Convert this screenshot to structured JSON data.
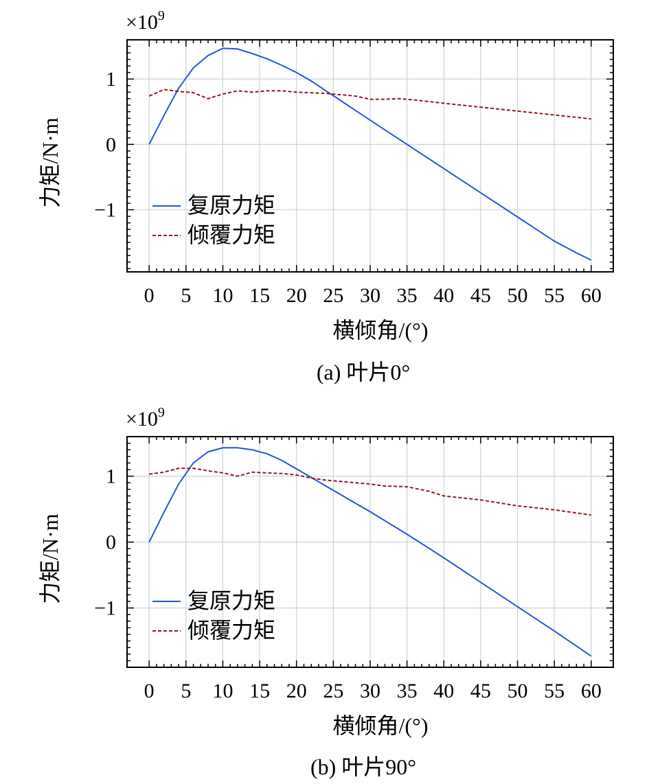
{
  "chart_data": [
    {
      "type": "line",
      "caption": "(a) 叶片0°",
      "xlabel": "横倾角/(°)",
      "ylabel": "力矩/N·m",
      "y_multiplier": "×10",
      "y_multiplier_exp": "9",
      "xlim": [
        -3,
        63
      ],
      "ylim": [
        -1.95,
        1.6
      ],
      "xticks": [
        0,
        5,
        10,
        15,
        20,
        25,
        30,
        35,
        40,
        45,
        50,
        55,
        60
      ],
      "xtick_labels": [
        "0",
        "5",
        "10",
        "15",
        "20",
        "25",
        "30",
        "35",
        "40",
        "45",
        "50",
        "55",
        "60"
      ],
      "yticks": [
        -1,
        0,
        1
      ],
      "ytick_labels": [
        "−1",
        "0",
        "1"
      ],
      "grid": true,
      "legend_position": "lower-left",
      "series": [
        {
          "name": "复原力矩",
          "color": "#2255dd",
          "dash": "solid",
          "x": [
            0,
            2,
            4,
            6,
            8,
            10,
            12,
            14,
            16,
            18,
            20,
            22,
            24,
            26,
            28,
            30,
            35,
            40,
            45,
            50,
            55,
            58,
            60
          ],
          "y": [
            0,
            0.44,
            0.86,
            1.17,
            1.36,
            1.47,
            1.46,
            1.39,
            1.31,
            1.21,
            1.1,
            0.97,
            0.82,
            0.67,
            0.52,
            0.37,
            0.0,
            -0.37,
            -0.74,
            -1.11,
            -1.48,
            -1.66,
            -1.77
          ]
        },
        {
          "name": "倾覆力矩",
          "color": "#8b1a1a",
          "dash": "dashed",
          "x": [
            0,
            2,
            4,
            6,
            8,
            10,
            12,
            14,
            16,
            18,
            20,
            22,
            24,
            26,
            28,
            30,
            32,
            34,
            36,
            40,
            45,
            50,
            55,
            60
          ],
          "y": [
            0.74,
            0.84,
            0.81,
            0.79,
            0.7,
            0.77,
            0.82,
            0.8,
            0.82,
            0.82,
            0.8,
            0.79,
            0.78,
            0.76,
            0.74,
            0.69,
            0.69,
            0.7,
            0.68,
            0.63,
            0.57,
            0.51,
            0.45,
            0.39
          ]
        }
      ]
    },
    {
      "type": "line",
      "caption": "(b) 叶片90°",
      "xlabel": "横倾角/(°)",
      "ylabel": "力矩/N·m",
      "y_multiplier": "×10",
      "y_multiplier_exp": "9",
      "xlim": [
        -3,
        63
      ],
      "ylim": [
        -1.9,
        1.6
      ],
      "xticks": [
        0,
        5,
        10,
        15,
        20,
        25,
        30,
        35,
        40,
        45,
        50,
        55,
        60
      ],
      "xtick_labels": [
        "0",
        "5",
        "10",
        "15",
        "20",
        "25",
        "30",
        "35",
        "40",
        "45",
        "50",
        "55",
        "60"
      ],
      "yticks": [
        -1,
        0,
        1
      ],
      "ytick_labels": [
        "−1",
        "0",
        "1"
      ],
      "grid": true,
      "legend_position": "lower-left",
      "series": [
        {
          "name": "复原力矩",
          "color": "#2255dd",
          "dash": "solid",
          "x": [
            0,
            2,
            4,
            6,
            8,
            10,
            12,
            14,
            16,
            18,
            20,
            22,
            24,
            26,
            28,
            30,
            35,
            40,
            45,
            50,
            55,
            60
          ],
          "y": [
            0,
            0.45,
            0.88,
            1.2,
            1.37,
            1.43,
            1.43,
            1.4,
            1.34,
            1.24,
            1.11,
            0.98,
            0.85,
            0.72,
            0.59,
            0.46,
            0.12,
            -0.24,
            -0.61,
            -0.98,
            -1.35,
            -1.73
          ]
        },
        {
          "name": "倾覆力矩",
          "color": "#8b1a1a",
          "dash": "dashed",
          "x": [
            0,
            2,
            4,
            6,
            8,
            10,
            12,
            14,
            16,
            18,
            20,
            22,
            24,
            26,
            28,
            30,
            32,
            35,
            38,
            40,
            45,
            50,
            55,
            60
          ],
          "y": [
            1.03,
            1.06,
            1.12,
            1.12,
            1.08,
            1.05,
            1.0,
            1.06,
            1.05,
            1.04,
            1.02,
            0.97,
            0.94,
            0.92,
            0.9,
            0.88,
            0.85,
            0.84,
            0.77,
            0.7,
            0.64,
            0.55,
            0.49,
            0.41
          ]
        }
      ]
    }
  ]
}
